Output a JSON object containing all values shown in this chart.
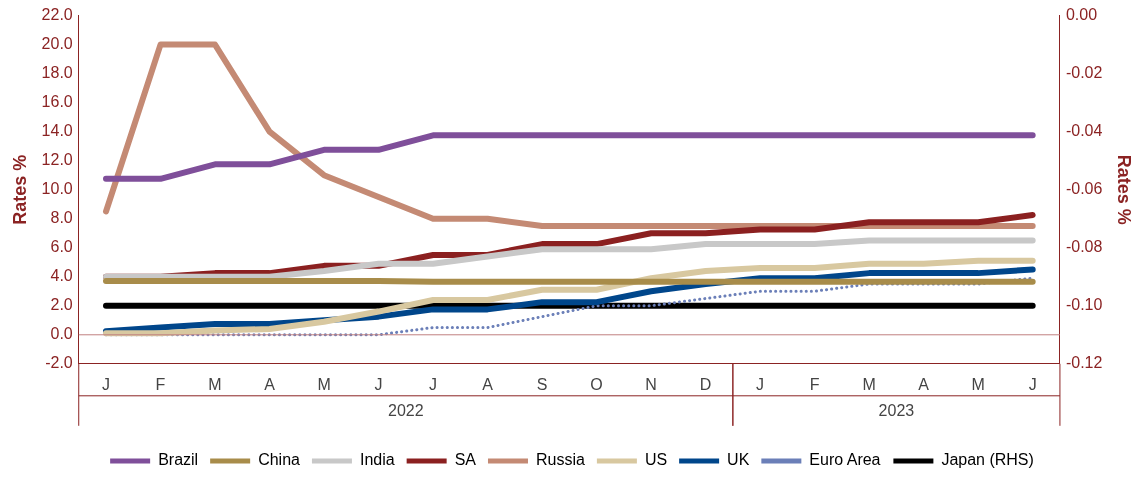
{
  "chart_data": {
    "type": "line",
    "categories": [
      "J",
      "F",
      "M",
      "A",
      "M",
      "J",
      "J",
      "A",
      "S",
      "O",
      "N",
      "D",
      "J",
      "F",
      "M",
      "A",
      "M",
      "J"
    ],
    "annotations": [
      "2022",
      "2023"
    ],
    "ylabel": "Rates %",
    "y2label": "Rates %",
    "ylim": [
      -2,
      22
    ],
    "yticks": [
      {
        "value": -2,
        "label": "-2.0"
      },
      {
        "value": 0,
        "label": "0.0"
      },
      {
        "value": 2,
        "label": "2.0"
      },
      {
        "value": 4,
        "label": "4.0"
      },
      {
        "value": 6,
        "label": "6.0"
      },
      {
        "value": 8,
        "label": "8.0"
      },
      {
        "value": 10,
        "label": "10.0"
      },
      {
        "value": 12,
        "label": "12.0"
      },
      {
        "value": 14,
        "label": "14.0"
      },
      {
        "value": 16,
        "label": "16.0"
      },
      {
        "value": 18,
        "label": "18.0"
      },
      {
        "value": 20,
        "label": "20.0"
      },
      {
        "value": 22,
        "label": "22.0"
      }
    ],
    "y2lim": [
      -0.12,
      0
    ],
    "y2ticks": [
      {
        "value": -0.12,
        "label": "-0.12"
      },
      {
        "value": -0.1,
        "label": "-0.10"
      },
      {
        "value": -0.08,
        "label": "-0.08"
      },
      {
        "value": -0.06,
        "label": "-0.06"
      },
      {
        "value": -0.04,
        "label": "-0.04"
      },
      {
        "value": -0.02,
        "label": "-0.02"
      },
      {
        "value": 0,
        "label": "0.00"
      }
    ],
    "ref_lines": [
      {
        "axis": "y",
        "value": 0,
        "color": "#c08080"
      }
    ],
    "grid": false,
    "legend": "bottom",
    "marker": "none",
    "series": [
      {
        "name": "Brazil",
        "color": "#7f4f9a",
        "values": [
          10.75,
          10.75,
          11.75,
          11.75,
          12.75,
          12.75,
          13.75,
          13.75,
          13.75,
          13.75,
          13.75,
          13.75,
          13.75,
          13.75,
          13.75,
          13.75,
          13.75,
          13.75
        ]
      },
      {
        "name": "China",
        "color": "#a88c4a",
        "values": [
          3.7,
          3.7,
          3.7,
          3.7,
          3.7,
          3.7,
          3.65,
          3.65,
          3.65,
          3.65,
          3.65,
          3.65,
          3.65,
          3.65,
          3.65,
          3.65,
          3.65,
          3.65
        ]
      },
      {
        "name": "India",
        "color": "#c8c8c8",
        "values": [
          4.0,
          4.0,
          4.0,
          4.0,
          4.4,
          4.9,
          4.9,
          5.4,
          5.9,
          5.9,
          5.9,
          6.25,
          6.25,
          6.25,
          6.5,
          6.5,
          6.5,
          6.5
        ]
      },
      {
        "name": "SA",
        "color": "#8b2020",
        "values": [
          4.0,
          4.0,
          4.25,
          4.25,
          4.75,
          4.75,
          5.5,
          5.5,
          6.25,
          6.25,
          7.0,
          7.0,
          7.25,
          7.25,
          7.75,
          7.75,
          7.75,
          8.25
        ]
      },
      {
        "name": "Russia",
        "color": "#c48a74",
        "values": [
          8.5,
          20,
          20,
          14,
          11,
          9.5,
          8,
          8,
          7.5,
          7.5,
          7.5,
          7.5,
          7.5,
          7.5,
          7.5,
          7.5,
          7.5,
          7.5
        ]
      },
      {
        "name": "US",
        "color": "#d8c8a0",
        "values": [
          0.1,
          0.1,
          0.3,
          0.4,
          0.9,
          1.6,
          2.4,
          2.4,
          3.1,
          3.1,
          3.9,
          4.4,
          4.6,
          4.6,
          4.9,
          4.9,
          5.1,
          5.1
        ]
      },
      {
        "name": "UK",
        "color": "#00468b",
        "values": [
          0.25,
          0.5,
          0.75,
          0.75,
          1.0,
          1.25,
          1.75,
          1.75,
          2.25,
          2.25,
          3.0,
          3.5,
          3.9,
          3.9,
          4.25,
          4.25,
          4.25,
          4.5
        ]
      },
      {
        "name": "Euro Area",
        "color": "#6b7fb8",
        "line_style": "dotted",
        "values": [
          0,
          0,
          0,
          0,
          0,
          0,
          0.5,
          0.5,
          1.25,
          2.0,
          2.0,
          2.5,
          3.0,
          3.0,
          3.5,
          3.5,
          3.5,
          3.9
        ]
      },
      {
        "name": "Japan (RHS)",
        "color": "#000000",
        "axis": "y2",
        "values": [
          -0.1,
          -0.1,
          -0.1,
          -0.1,
          -0.1,
          -0.1,
          -0.1,
          -0.1,
          -0.1,
          -0.1,
          -0.1,
          -0.1,
          -0.1,
          -0.1,
          -0.1,
          -0.1,
          -0.1,
          -0.1
        ]
      }
    ]
  }
}
